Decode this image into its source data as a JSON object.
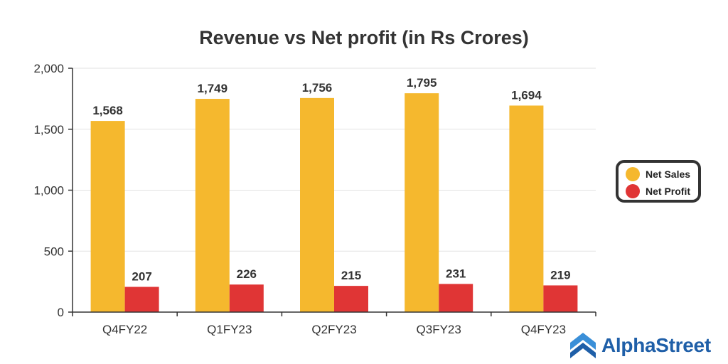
{
  "chart_data": {
    "type": "bar",
    "title": "Revenue vs Net profit (in Rs Crores)",
    "categories": [
      "Q4FY22",
      "Q1FY23",
      "Q2FY23",
      "Q3FY23",
      "Q4FY23"
    ],
    "series": [
      {
        "name": "Net Sales",
        "color": "#f5b82e",
        "values": [
          1568,
          1749,
          1756,
          1795,
          1694
        ]
      },
      {
        "name": "Net Profit",
        "color": "#e03535",
        "values": [
          207,
          226,
          215,
          231,
          219
        ]
      }
    ],
    "data_labels": [
      [
        "1,568",
        "1,749",
        "1,756",
        "1,795",
        "1,694"
      ],
      [
        "207",
        "226",
        "215",
        "231",
        "219"
      ]
    ],
    "yticks": [
      0,
      500,
      1000,
      1500,
      2000
    ],
    "ytick_labels": [
      "0",
      "500",
      "1,000",
      "1,500",
      "2,000"
    ],
    "ylim": [
      0,
      2000
    ],
    "grid": true,
    "legend_position": "right"
  },
  "legend": {
    "net_sales": "Net Sales",
    "net_profit": "Net Profit"
  },
  "branding": {
    "logo_text": "AlphaStreet",
    "logo_color": "#1f5fa8"
  }
}
